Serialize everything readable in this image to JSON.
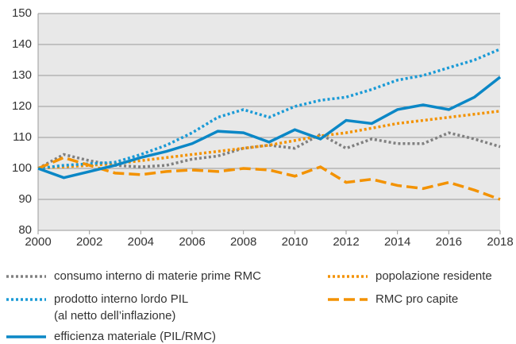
{
  "chart_data": {
    "type": "line",
    "x": [
      2000,
      2001,
      2002,
      2003,
      2004,
      2005,
      2006,
      2007,
      2008,
      2009,
      2010,
      2011,
      2012,
      2013,
      2014,
      2015,
      2016,
      2017,
      2018
    ],
    "xlim": [
      2000,
      2018
    ],
    "xticks": [
      2000,
      2002,
      2004,
      2006,
      2008,
      2010,
      2012,
      2014,
      2016,
      2018
    ],
    "ylim": [
      80,
      150
    ],
    "yticks": [
      80,
      90,
      100,
      110,
      120,
      130,
      140,
      150
    ],
    "grid": true,
    "series": [
      {
        "name": "consumo interno di materie prime RMC",
        "color": "#808080",
        "dash": "dotted",
        "values": [
          100,
          104.5,
          102.5,
          101,
          100.5,
          101,
          103,
          104,
          106.5,
          107.5,
          106.5,
          111,
          106.5,
          109.5,
          108,
          108,
          111.5,
          109.5,
          107
        ]
      },
      {
        "name": "popolazione residente",
        "color": "#f39200",
        "dash": "dotted",
        "values": [
          100,
          100.5,
          101,
          101.5,
          102.5,
          103.5,
          104.5,
          105.5,
          106.5,
          107.5,
          109,
          110.5,
          111.5,
          113,
          114.5,
          115.5,
          116.5,
          117.5,
          118.5
        ]
      },
      {
        "name": "prodotto interno lordo PIL\n(al netto dell’inflazione)",
        "color": "#1a9ad6",
        "dash": "dotted",
        "values": [
          100,
          101,
          101.5,
          102,
          104.5,
          107.5,
          111.5,
          116.5,
          119,
          116.5,
          120,
          122,
          123,
          125.5,
          128.5,
          130,
          132.5,
          135,
          138.5
        ]
      },
      {
        "name": "RMC pro capite",
        "color": "#f39200",
        "dash": "dashed",
        "values": [
          100,
          103.5,
          101,
          98.5,
          98,
          99,
          99.5,
          99,
          100,
          99.5,
          97.5,
          100.5,
          95.5,
          96.5,
          94.5,
          93.5,
          95.5,
          93,
          90
        ]
      },
      {
        "name": "efficienza materiale (PIL/RMC)",
        "color": "#0b87c6",
        "dash": "solid",
        "values": [
          100,
          97,
          99,
          101,
          103.5,
          105.5,
          108,
          112,
          111.5,
          108.5,
          112.5,
          109.5,
          115.5,
          114.5,
          119,
          120.5,
          119,
          123,
          129.5
        ]
      }
    ]
  }
}
